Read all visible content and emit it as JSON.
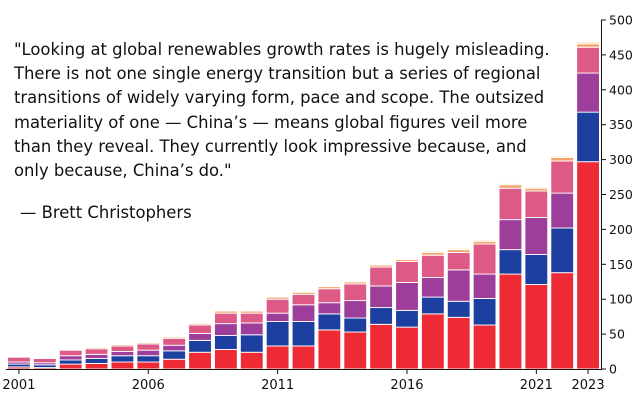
{
  "quote": {
    "text": "\"Looking at global renewables growth rates is hugely misleading. There is not one single energy transition but a series of regional transitions of widely varying form, pace and scope. The outsized materiality of one — China’s — means global figures veil more than they reveal. They currently look impressive because, and only because, China’s do.\"",
    "author": "— Brett Christophers"
  },
  "chart_data": {
    "type": "bar",
    "stacked": true,
    "x": [
      2001,
      2002,
      2003,
      2004,
      2005,
      2006,
      2007,
      2008,
      2009,
      2010,
      2011,
      2012,
      2013,
      2014,
      2015,
      2016,
      2017,
      2018,
      2019,
      2020,
      2021,
      2022,
      2023
    ],
    "x_tick_labels": [
      "2001",
      "2006",
      "2011",
      "2016",
      "2021",
      "2023"
    ],
    "ylim": [
      0,
      500
    ],
    "y_ticks": [
      0,
      50,
      100,
      150,
      200,
      250,
      300,
      350,
      400,
      450,
      500
    ],
    "y_axis_side": "right",
    "grid": false,
    "legend": "none",
    "colors": [
      "#ee2b34",
      "#1d3fa0",
      "#9c3e9a",
      "#de5a86",
      "#f6a46a",
      "#fde3c3"
    ],
    "series": [
      {
        "values": [
          3,
          2,
          7,
          8,
          10,
          10,
          14,
          24,
          28,
          24,
          33,
          33,
          56,
          53,
          64,
          60,
          79,
          74,
          63,
          136,
          121,
          138,
          297
        ]
      },
      {
        "values": [
          4,
          4,
          6,
          7,
          9,
          9,
          12,
          17,
          20,
          25,
          35,
          35,
          23,
          20,
          24,
          24,
          24,
          23,
          38,
          35,
          43,
          64,
          71
        ]
      },
      {
        "values": [
          3,
          3,
          6,
          6,
          6,
          8,
          8,
          10,
          17,
          17,
          12,
          24,
          16,
          25,
          31,
          40,
          28,
          45,
          35,
          43,
          53,
          50,
          56
        ]
      },
      {
        "values": [
          7,
          6,
          8,
          8,
          8,
          9,
          10,
          12,
          15,
          14,
          20,
          15,
          20,
          24,
          27,
          30,
          32,
          25,
          43,
          45,
          38,
          46,
          37
        ]
      },
      {
        "values": [
          1,
          1,
          1,
          2,
          2,
          2,
          2,
          2,
          3,
          3,
          3,
          3,
          3,
          3,
          3,
          3,
          4,
          4,
          4,
          5,
          4,
          5,
          5
        ]
      },
      {
        "values": [
          1,
          1,
          1,
          1,
          1,
          1,
          1,
          1,
          1,
          1,
          1,
          1,
          1,
          1,
          1,
          1,
          2,
          2,
          2,
          2,
          2,
          2,
          3
        ]
      }
    ]
  }
}
